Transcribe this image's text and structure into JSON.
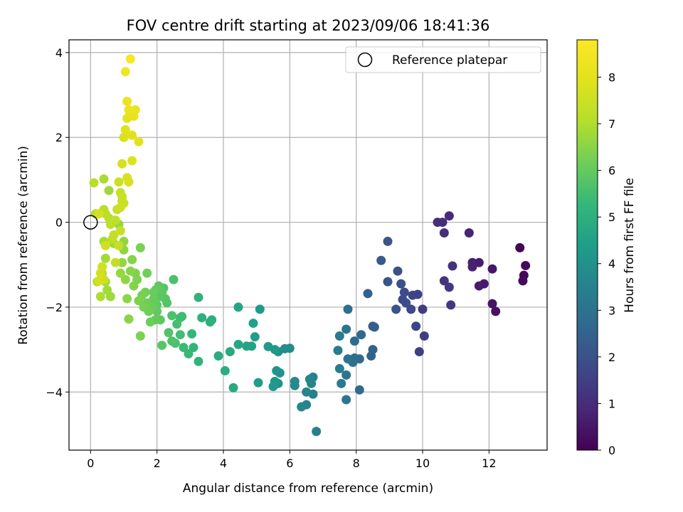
{
  "chart_data": {
    "type": "scatter",
    "title": "FOV centre drift starting at 2023/09/06 18:41:36",
    "xlabel": "Angular distance from reference (arcmin)",
    "ylabel": "Rotation from reference (arcmin)",
    "xlim": [
      -0.65,
      13.75
    ],
    "ylim": [
      -5.37,
      4.3
    ],
    "xticks": [
      0,
      2,
      4,
      6,
      8,
      10,
      12
    ],
    "yticks": [
      -4,
      -2,
      0,
      2,
      4
    ],
    "grid": true,
    "legend": {
      "placement": "top-right",
      "entries": [
        "Reference platepar"
      ]
    },
    "reference": {
      "label": "Reference platepar",
      "x": 0,
      "y": 0
    },
    "colorbar": {
      "label": "Hours from first FF file",
      "colormap": "viridis",
      "range": [
        0,
        8.8
      ],
      "ticks": [
        0,
        1,
        2,
        3,
        4,
        5,
        6,
        7,
        8
      ]
    },
    "points": [
      {
        "x": 12.93,
        "y": -0.6,
        "c": 0.1
      },
      {
        "x": 13.05,
        "y": -1.25,
        "c": 0.15
      },
      {
        "x": 13.1,
        "y": -1.02,
        "c": 0.2
      },
      {
        "x": 13.02,
        "y": -1.38,
        "c": 0.2
      },
      {
        "x": 12.2,
        "y": -2.1,
        "c": 0.4
      },
      {
        "x": 12.1,
        "y": -1.92,
        "c": 0.45
      },
      {
        "x": 12.1,
        "y": -1.1,
        "c": 0.5
      },
      {
        "x": 11.85,
        "y": -1.45,
        "c": 0.55
      },
      {
        "x": 11.7,
        "y": -1.5,
        "c": 0.6
      },
      {
        "x": 11.7,
        "y": -0.95,
        "c": 0.65
      },
      {
        "x": 11.5,
        "y": -0.95,
        "c": 0.7
      },
      {
        "x": 11.5,
        "y": -1.05,
        "c": 0.75
      },
      {
        "x": 11.4,
        "y": -0.25,
        "c": 0.8
      },
      {
        "x": 10.8,
        "y": 0.15,
        "c": 0.95
      },
      {
        "x": 10.6,
        "y": 0.0,
        "c": 1.0
      },
      {
        "x": 10.45,
        "y": 0.0,
        "c": 1.05
      },
      {
        "x": 10.65,
        "y": -0.25,
        "c": 1.1
      },
      {
        "x": 10.9,
        "y": -1.03,
        "c": 1.15
      },
      {
        "x": 10.65,
        "y": -1.38,
        "c": 1.2
      },
      {
        "x": 10.8,
        "y": -1.53,
        "c": 1.25
      },
      {
        "x": 10.85,
        "y": -1.95,
        "c": 1.3
      },
      {
        "x": 10.0,
        "y": -2.05,
        "c": 1.4
      },
      {
        "x": 10.05,
        "y": -2.68,
        "c": 1.45
      },
      {
        "x": 9.9,
        "y": -3.05,
        "c": 1.5
      },
      {
        "x": 9.85,
        "y": -1.7,
        "c": 1.55
      },
      {
        "x": 9.7,
        "y": -1.72,
        "c": 1.6
      },
      {
        "x": 9.8,
        "y": -2.45,
        "c": 1.65
      },
      {
        "x": 9.65,
        "y": -2.05,
        "c": 1.7
      },
      {
        "x": 9.4,
        "y": -1.82,
        "c": 1.8
      },
      {
        "x": 9.45,
        "y": -1.65,
        "c": 1.85
      },
      {
        "x": 9.5,
        "y": -1.9,
        "c": 1.9
      },
      {
        "x": 9.35,
        "y": -1.45,
        "c": 1.95
      },
      {
        "x": 9.25,
        "y": -1.15,
        "c": 2.0
      },
      {
        "x": 9.2,
        "y": -2.05,
        "c": 2.05
      },
      {
        "x": 8.95,
        "y": -1.4,
        "c": 2.1
      },
      {
        "x": 8.95,
        "y": -0.45,
        "c": 2.15
      },
      {
        "x": 8.75,
        "y": -0.9,
        "c": 2.2
      },
      {
        "x": 8.55,
        "y": -2.47,
        "c": 2.3
      },
      {
        "x": 8.5,
        "y": -2.45,
        "c": 2.35
      },
      {
        "x": 8.35,
        "y": -1.68,
        "c": 2.4
      },
      {
        "x": 8.5,
        "y": -3.0,
        "c": 2.45
      },
      {
        "x": 8.45,
        "y": -3.15,
        "c": 2.5
      },
      {
        "x": 8.15,
        "y": -2.65,
        "c": 2.6
      },
      {
        "x": 8.1,
        "y": -3.22,
        "c": 2.7
      },
      {
        "x": 8.1,
        "y": -3.95,
        "c": 2.75
      },
      {
        "x": 7.95,
        "y": -2.8,
        "c": 2.8
      },
      {
        "x": 7.95,
        "y": -3.2,
        "c": 2.85
      },
      {
        "x": 7.9,
        "y": -3.3,
        "c": 2.9
      },
      {
        "x": 7.75,
        "y": -2.05,
        "c": 2.95
      },
      {
        "x": 7.75,
        "y": -3.22,
        "c": 3.0
      },
      {
        "x": 7.7,
        "y": -2.52,
        "c": 3.05
      },
      {
        "x": 7.7,
        "y": -3.6,
        "c": 3.1
      },
      {
        "x": 7.7,
        "y": -4.18,
        "c": 3.15
      },
      {
        "x": 7.55,
        "y": -3.8,
        "c": 3.2
      },
      {
        "x": 7.5,
        "y": -2.68,
        "c": 3.25
      },
      {
        "x": 7.45,
        "y": -3.02,
        "c": 3.3
      },
      {
        "x": 7.5,
        "y": -3.45,
        "c": 3.35
      },
      {
        "x": 6.8,
        "y": -4.93,
        "c": 3.4
      },
      {
        "x": 6.7,
        "y": -3.65,
        "c": 3.45
      },
      {
        "x": 6.7,
        "y": -4.05,
        "c": 3.5
      },
      {
        "x": 6.65,
        "y": -3.8,
        "c": 3.55
      },
      {
        "x": 6.6,
        "y": -3.7,
        "c": 3.6
      },
      {
        "x": 6.5,
        "y": -4.3,
        "c": 3.62
      },
      {
        "x": 6.5,
        "y": -4.0,
        "c": 3.65
      },
      {
        "x": 6.35,
        "y": -4.35,
        "c": 3.7
      },
      {
        "x": 6.15,
        "y": -3.75,
        "c": 3.75
      },
      {
        "x": 6.15,
        "y": -3.85,
        "c": 3.8
      },
      {
        "x": 6.0,
        "y": -2.97,
        "c": 3.85
      },
      {
        "x": 5.85,
        "y": -2.98,
        "c": 3.9
      },
      {
        "x": 5.65,
        "y": -3.05,
        "c": 3.95
      },
      {
        "x": 5.7,
        "y": -3.55,
        "c": 4.0
      },
      {
        "x": 5.65,
        "y": -3.8,
        "c": 4.05
      },
      {
        "x": 5.6,
        "y": -3.5,
        "c": 4.1
      },
      {
        "x": 5.55,
        "y": -3.75,
        "c": 4.15
      },
      {
        "x": 5.55,
        "y": -3.0,
        "c": 4.2
      },
      {
        "x": 5.5,
        "y": -3.87,
        "c": 4.25
      },
      {
        "x": 5.35,
        "y": -2.93,
        "c": 4.3
      },
      {
        "x": 5.1,
        "y": -2.05,
        "c": 4.35
      },
      {
        "x": 5.05,
        "y": -3.78,
        "c": 4.4
      },
      {
        "x": 4.95,
        "y": -2.7,
        "c": 4.45
      },
      {
        "x": 4.9,
        "y": -2.38,
        "c": 4.5
      },
      {
        "x": 4.85,
        "y": -2.92,
        "c": 4.55
      },
      {
        "x": 4.7,
        "y": -2.92,
        "c": 4.6
      },
      {
        "x": 4.45,
        "y": -2.0,
        "c": 4.65
      },
      {
        "x": 4.45,
        "y": -2.88,
        "c": 4.7
      },
      {
        "x": 4.3,
        "y": -3.9,
        "c": 4.75
      },
      {
        "x": 4.2,
        "y": -3.05,
        "c": 4.8
      },
      {
        "x": 4.05,
        "y": -3.5,
        "c": 4.85
      },
      {
        "x": 3.85,
        "y": -3.15,
        "c": 4.9
      },
      {
        "x": 3.65,
        "y": -2.3,
        "c": 4.95
      },
      {
        "x": 3.6,
        "y": -2.35,
        "c": 5.0
      },
      {
        "x": 3.35,
        "y": -2.25,
        "c": 5.05
      },
      {
        "x": 3.25,
        "y": -1.77,
        "c": 5.1
      },
      {
        "x": 3.25,
        "y": -3.28,
        "c": 5.15
      },
      {
        "x": 3.1,
        "y": -2.95,
        "c": 5.2
      },
      {
        "x": 3.05,
        "y": -2.63,
        "c": 5.25
      },
      {
        "x": 2.95,
        "y": -3.1,
        "c": 5.3
      },
      {
        "x": 2.8,
        "y": -2.95,
        "c": 5.35
      },
      {
        "x": 2.75,
        "y": -2.22,
        "c": 5.4
      },
      {
        "x": 2.7,
        "y": -2.25,
        "c": 5.45
      },
      {
        "x": 2.7,
        "y": -2.65,
        "c": 5.5
      },
      {
        "x": 2.6,
        "y": -2.4,
        "c": 5.55
      },
      {
        "x": 2.55,
        "y": -2.85,
        "c": 5.6
      },
      {
        "x": 2.5,
        "y": -1.35,
        "c": 5.62
      },
      {
        "x": 2.45,
        "y": -2.2,
        "c": 5.65
      },
      {
        "x": 2.45,
        "y": -2.8,
        "c": 5.7
      },
      {
        "x": 2.35,
        "y": -2.6,
        "c": 5.72
      },
      {
        "x": 2.3,
        "y": -1.9,
        "c": 5.75
      },
      {
        "x": 2.25,
        "y": -1.8,
        "c": 5.77
      },
      {
        "x": 2.2,
        "y": -1.55,
        "c": 5.8
      },
      {
        "x": 2.15,
        "y": -2.9,
        "c": 5.82
      },
      {
        "x": 2.15,
        "y": -1.65,
        "c": 5.85
      },
      {
        "x": 2.1,
        "y": -1.75,
        "c": 5.87
      },
      {
        "x": 2.1,
        "y": -2.3,
        "c": 5.9
      },
      {
        "x": 2.05,
        "y": -1.5,
        "c": 5.92
      },
      {
        "x": 2.0,
        "y": -1.95,
        "c": 5.95
      },
      {
        "x": 2.0,
        "y": -2.1,
        "c": 5.97
      },
      {
        "x": 1.95,
        "y": -1.6,
        "c": 6.0
      },
      {
        "x": 1.95,
        "y": -2.3,
        "c": 6.02
      },
      {
        "x": 1.9,
        "y": -1.8,
        "c": 6.05
      },
      {
        "x": 1.9,
        "y": -1.65,
        "c": 6.07
      },
      {
        "x": 1.85,
        "y": -2.0,
        "c": 6.1
      },
      {
        "x": 1.8,
        "y": -2.35,
        "c": 6.12
      },
      {
        "x": 1.75,
        "y": -2.1,
        "c": 6.15
      },
      {
        "x": 1.7,
        "y": -1.9,
        "c": 6.17
      },
      {
        "x": 1.7,
        "y": -1.2,
        "c": 6.2
      },
      {
        "x": 1.65,
        "y": -1.65,
        "c": 6.22
      },
      {
        "x": 1.6,
        "y": -2.0,
        "c": 6.25
      },
      {
        "x": 1.55,
        "y": -1.72,
        "c": 6.27
      },
      {
        "x": 1.5,
        "y": -0.6,
        "c": 6.3
      },
      {
        "x": 1.5,
        "y": -2.68,
        "c": 6.32
      },
      {
        "x": 1.45,
        "y": -1.85,
        "c": 6.35
      },
      {
        "x": 1.4,
        "y": -1.35,
        "c": 6.37
      },
      {
        "x": 1.35,
        "y": -1.2,
        "c": 6.4
      },
      {
        "x": 1.3,
        "y": -1.5,
        "c": 6.42
      },
      {
        "x": 1.25,
        "y": -0.88,
        "c": 6.45
      },
      {
        "x": 1.2,
        "y": -1.15,
        "c": 6.47
      },
      {
        "x": 1.15,
        "y": -2.28,
        "c": 6.5
      },
      {
        "x": 1.1,
        "y": -1.8,
        "c": 6.52
      },
      {
        "x": 1.05,
        "y": -1.35,
        "c": 6.55
      },
      {
        "x": 1.0,
        "y": -0.65,
        "c": 6.57
      },
      {
        "x": 1.0,
        "y": -0.45,
        "c": 6.6
      },
      {
        "x": 0.95,
        "y": -0.95,
        "c": 6.62
      },
      {
        "x": 0.9,
        "y": -1.2,
        "c": 6.65
      },
      {
        "x": 0.85,
        "y": -0.05,
        "c": 6.67
      },
      {
        "x": 0.7,
        "y": -0.5,
        "c": 6.7
      },
      {
        "x": 0.65,
        "y": 0.0,
        "c": 6.72
      },
      {
        "x": 0.6,
        "y": -1.75,
        "c": 6.75
      },
      {
        "x": 0.55,
        "y": 0.75,
        "c": 6.77
      },
      {
        "x": 0.5,
        "y": -1.6,
        "c": 6.8
      },
      {
        "x": 0.45,
        "y": -0.85,
        "c": 6.82
      },
      {
        "x": 0.45,
        "y": -1.4,
        "c": 6.85
      },
      {
        "x": 0.4,
        "y": -0.45,
        "c": 6.87
      },
      {
        "x": 0.4,
        "y": 1.02,
        "c": 6.9
      },
      {
        "x": 0.35,
        "y": -1.05,
        "c": 6.92
      },
      {
        "x": 0.35,
        "y": -1.2,
        "c": 6.95
      },
      {
        "x": 0.3,
        "y": -1.75,
        "c": 6.97
      },
      {
        "x": 0.25,
        "y": 0.2,
        "c": 7.0
      },
      {
        "x": 0.2,
        "y": -1.4,
        "c": 7.02
      },
      {
        "x": 0.15,
        "y": 0.2,
        "c": 7.05
      },
      {
        "x": 0.1,
        "y": 0.93,
        "c": 7.1
      },
      {
        "x": 0.4,
        "y": 0.3,
        "c": 7.12
      },
      {
        "x": 0.45,
        "y": 0.2,
        "c": 7.15
      },
      {
        "x": 0.55,
        "y": 0.1,
        "c": 7.17
      },
      {
        "x": 0.6,
        "y": -0.05,
        "c": 7.2
      },
      {
        "x": 0.65,
        "y": -0.4,
        "c": 7.22
      },
      {
        "x": 0.7,
        "y": -0.3,
        "c": 7.25
      },
      {
        "x": 0.75,
        "y": 0.05,
        "c": 7.27
      },
      {
        "x": 0.75,
        "y": -0.95,
        "c": 7.3
      },
      {
        "x": 0.8,
        "y": 0.3,
        "c": 7.32
      },
      {
        "x": 0.85,
        "y": -0.55,
        "c": 7.35
      },
      {
        "x": 0.9,
        "y": -0.2,
        "c": 7.37
      },
      {
        "x": 0.9,
        "y": 0.7,
        "c": 7.4
      },
      {
        "x": 0.95,
        "y": 0.5,
        "c": 7.42
      },
      {
        "x": 0.95,
        "y": 0.6,
        "c": 7.45
      },
      {
        "x": 1.0,
        "y": 0.45,
        "c": 7.47
      },
      {
        "x": 0.85,
        "y": 0.95,
        "c": 7.5
      },
      {
        "x": 0.9,
        "y": 0.35,
        "c": 7.52
      },
      {
        "x": 0.45,
        "y": -0.55,
        "c": 7.55
      },
      {
        "x": 0.4,
        "y": -1.35,
        "c": 7.57
      },
      {
        "x": 0.35,
        "y": -1.05,
        "c": 7.6
      },
      {
        "x": 0.3,
        "y": -1.2,
        "c": 7.62
      },
      {
        "x": 0.25,
        "y": -1.38,
        "c": 7.65
      },
      {
        "x": 0.25,
        "y": 0.2,
        "c": 7.67
      },
      {
        "x": 0.95,
        "y": 1.38,
        "c": 7.7
      },
      {
        "x": 1.1,
        "y": 1.05,
        "c": 7.72
      },
      {
        "x": 1.15,
        "y": 0.95,
        "c": 7.75
      },
      {
        "x": 1.0,
        "y": 2.0,
        "c": 7.8
      },
      {
        "x": 1.25,
        "y": 1.45,
        "c": 7.85
      },
      {
        "x": 1.05,
        "y": 2.18,
        "c": 7.9
      },
      {
        "x": 1.25,
        "y": 2.05,
        "c": 7.95
      },
      {
        "x": 1.45,
        "y": 1.9,
        "c": 8.0
      },
      {
        "x": 1.1,
        "y": 2.45,
        "c": 8.05
      },
      {
        "x": 1.2,
        "y": 2.55,
        "c": 8.1
      },
      {
        "x": 1.3,
        "y": 2.5,
        "c": 8.15
      },
      {
        "x": 1.35,
        "y": 2.65,
        "c": 8.2
      },
      {
        "x": 1.15,
        "y": 2.65,
        "c": 8.25
      },
      {
        "x": 1.1,
        "y": 2.85,
        "c": 8.3
      },
      {
        "x": 1.05,
        "y": 3.55,
        "c": 8.4
      },
      {
        "x": 1.2,
        "y": 3.85,
        "c": 8.6
      }
    ]
  }
}
